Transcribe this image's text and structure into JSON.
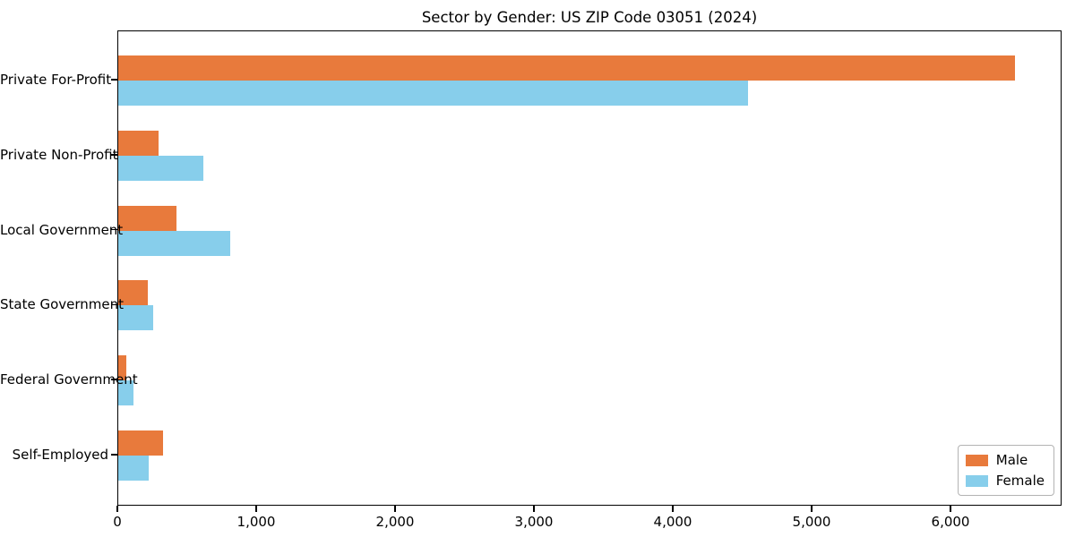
{
  "title": "Sector by Gender: US ZIP Code 03051 (2024)",
  "chart_data": {
    "type": "bar",
    "orientation": "horizontal",
    "title": "Sector by Gender: US ZIP Code 03051 (2024)",
    "xlabel": "",
    "ylabel": "",
    "categories": [
      "Private For-Profit",
      "Private Non-Profit",
      "Local Government",
      "State Government",
      "Federal Government",
      "Self-Employed"
    ],
    "series": [
      {
        "name": "Male",
        "color": "#e87a3c",
        "values": [
          6470,
          288,
          423,
          214,
          56,
          322
        ]
      },
      {
        "name": "Female",
        "color": "#87ceeb",
        "values": [
          4545,
          616,
          809,
          255,
          107,
          223
        ]
      }
    ],
    "xlim": [
      0,
      6800
    ],
    "xticks": [
      {
        "value": 0,
        "label": "0"
      },
      {
        "value": 1000,
        "label": "1,000"
      },
      {
        "value": 2000,
        "label": "2,000"
      },
      {
        "value": 3000,
        "label": "3,000"
      },
      {
        "value": 4000,
        "label": "4,000"
      },
      {
        "value": 5000,
        "label": "5,000"
      },
      {
        "value": 6000,
        "label": "6,000"
      }
    ],
    "grid": false,
    "legend_position": "lower right"
  },
  "legend": {
    "items": [
      {
        "label": "Male",
        "color": "#e87a3c"
      },
      {
        "label": "Female",
        "color": "#87ceeb"
      }
    ]
  }
}
